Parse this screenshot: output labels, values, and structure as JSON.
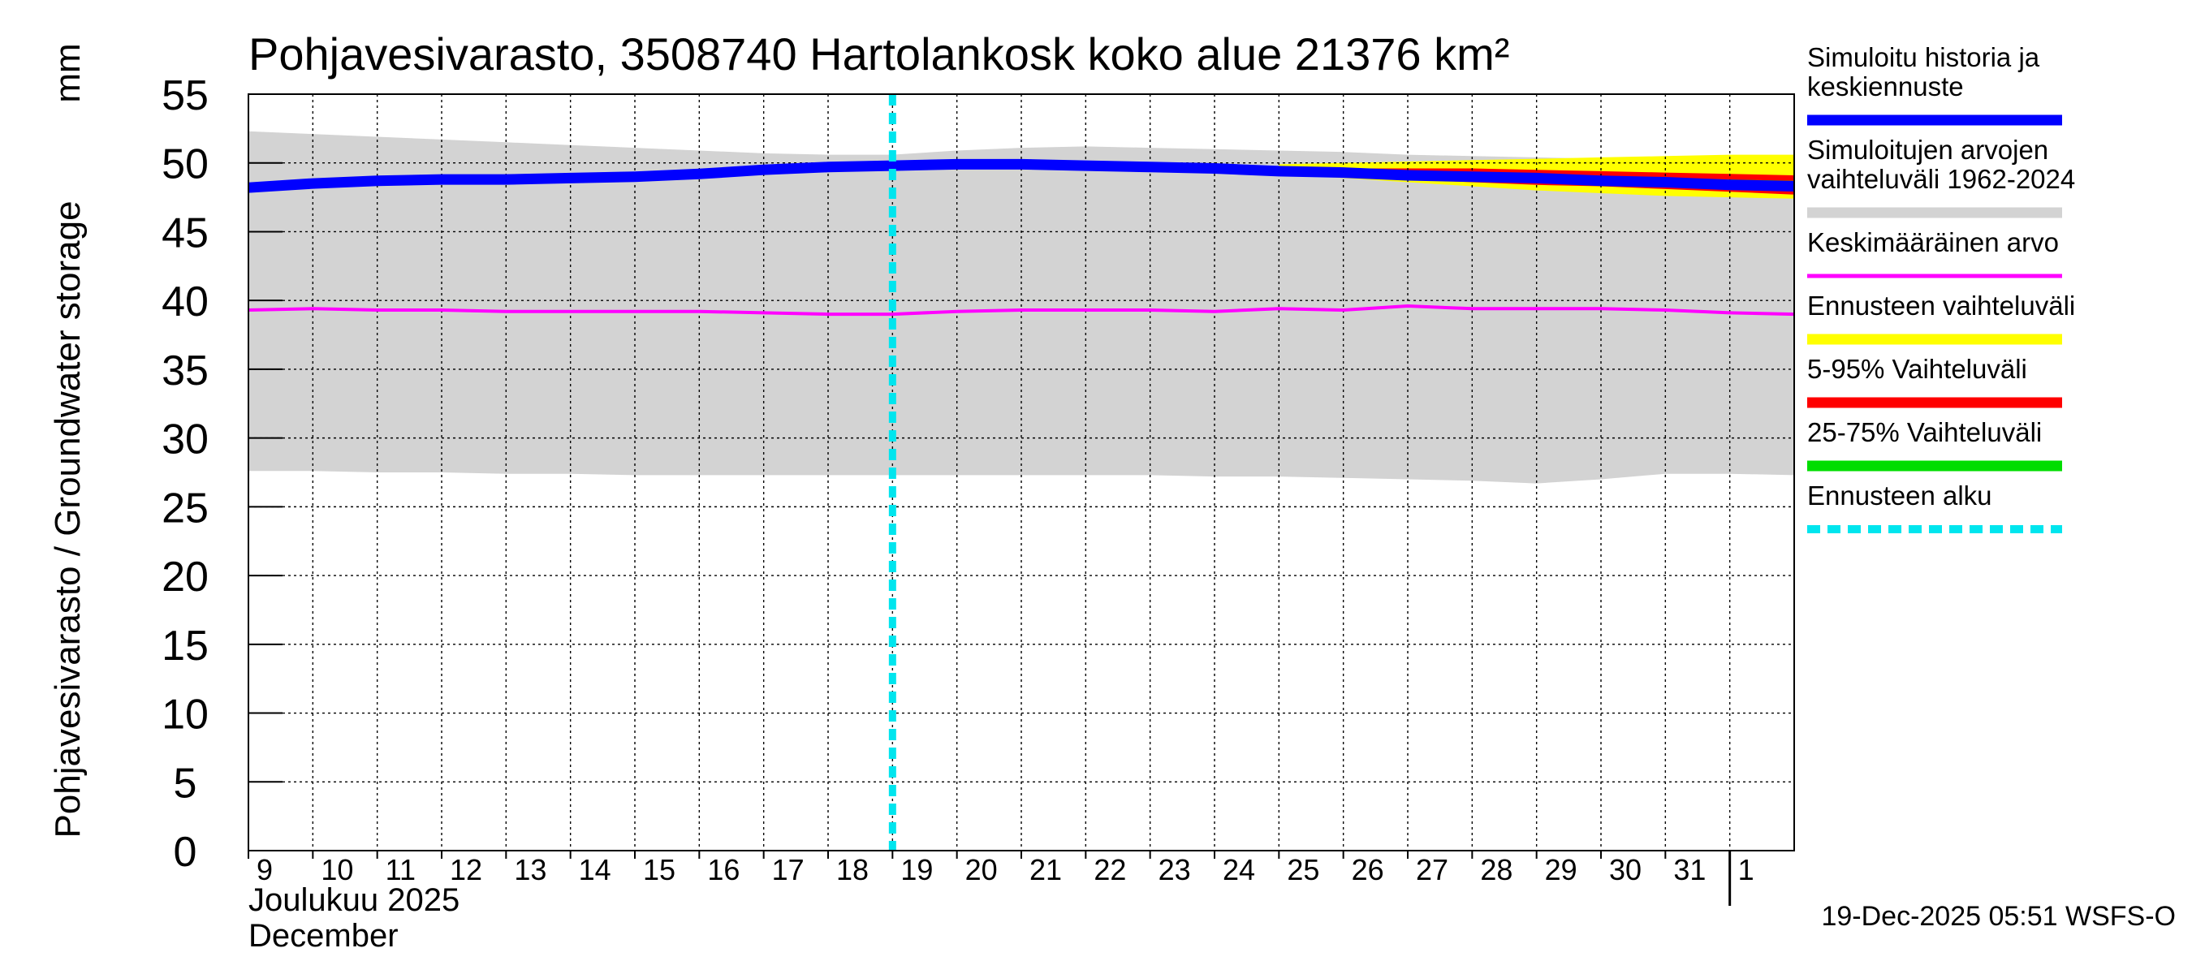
{
  "chart_data": {
    "type": "area",
    "title": "Pohjavesivarasto, 3508740 Hartolankosk koko alue 21376 km²",
    "ylabel": "Pohjavesivarasto / Groundwater storage",
    "yunit": "mm",
    "ylim": [
      0,
      55
    ],
    "yticks": [
      0,
      5,
      10,
      15,
      20,
      25,
      30,
      35,
      40,
      45,
      50,
      55
    ],
    "xlim": [
      0,
      24
    ],
    "xticks": [
      {
        "pos": 0,
        "label": "9"
      },
      {
        "pos": 1,
        "label": "10"
      },
      {
        "pos": 2,
        "label": "11"
      },
      {
        "pos": 3,
        "label": "12"
      },
      {
        "pos": 4,
        "label": "13"
      },
      {
        "pos": 5,
        "label": "14"
      },
      {
        "pos": 6,
        "label": "15"
      },
      {
        "pos": 7,
        "label": "16"
      },
      {
        "pos": 8,
        "label": "17"
      },
      {
        "pos": 9,
        "label": "18"
      },
      {
        "pos": 10,
        "label": "19"
      },
      {
        "pos": 11,
        "label": "20"
      },
      {
        "pos": 12,
        "label": "21"
      },
      {
        "pos": 13,
        "label": "22"
      },
      {
        "pos": 14,
        "label": "23"
      },
      {
        "pos": 15,
        "label": "24"
      },
      {
        "pos": 16,
        "label": "25"
      },
      {
        "pos": 17,
        "label": "26"
      },
      {
        "pos": 18,
        "label": "27"
      },
      {
        "pos": 19,
        "label": "28"
      },
      {
        "pos": 20,
        "label": "29"
      },
      {
        "pos": 21,
        "label": "30"
      },
      {
        "pos": 22,
        "label": "31"
      },
      {
        "pos": 23,
        "label": "1"
      }
    ],
    "month_label_fi": "Joulukuu  2025",
    "month_label_en": "December",
    "month_boundary": 23,
    "forecast_start": 10,
    "x": [
      0,
      1,
      2,
      3,
      4,
      5,
      6,
      7,
      8,
      9,
      10,
      11,
      12,
      13,
      14,
      15,
      16,
      17,
      18,
      19,
      20,
      21,
      22,
      23,
      24
    ],
    "series": [
      {
        "name": "Simuloitujen arvojen vaihteluväli 1962-2024",
        "role": "hist_range",
        "color": "#d3d3d3",
        "low": [
          27.6,
          27.6,
          27.5,
          27.5,
          27.4,
          27.4,
          27.3,
          27.3,
          27.3,
          27.3,
          27.3,
          27.3,
          27.3,
          27.3,
          27.3,
          27.2,
          27.2,
          27.1,
          27.0,
          26.9,
          26.7,
          27.0,
          27.4,
          27.4,
          27.3
        ],
        "high": [
          52.3,
          52.1,
          51.9,
          51.7,
          51.5,
          51.3,
          51.1,
          50.9,
          50.7,
          50.6,
          50.6,
          50.9,
          51.1,
          51.2,
          51.1,
          51.0,
          50.9,
          50.8,
          50.6,
          50.5,
          50.4,
          50.3,
          50.2,
          50.1,
          50.1
        ]
      },
      {
        "name": "Ennusteen vaihteluväli",
        "role": "forecast_range",
        "color": "#ffff00",
        "x": [
          16,
          17,
          18,
          19,
          20,
          21,
          22,
          23,
          24
        ],
        "low": [
          49.2,
          48.9,
          48.6,
          48.3,
          48.0,
          47.8,
          47.6,
          47.5,
          47.4
        ],
        "high": [
          49.9,
          50.0,
          50.1,
          50.2,
          50.3,
          50.4,
          50.5,
          50.6,
          50.6
        ]
      },
      {
        "name": "5-95% Vaihteluväli",
        "role": "p5_95",
        "color": "#ff0000",
        "x": [
          16,
          17,
          18,
          19,
          20,
          21,
          22,
          23,
          24
        ],
        "low": [
          49.3,
          49.0,
          48.8,
          48.6,
          48.4,
          48.3,
          48.1,
          47.9,
          47.7
        ],
        "high": [
          49.6,
          49.6,
          49.6,
          49.6,
          49.5,
          49.4,
          49.3,
          49.2,
          49.1
        ]
      },
      {
        "name": "25-75% Vaihteluväli",
        "role": "p25_75",
        "color": "#00dd00",
        "x": [
          16,
          17,
          18,
          19,
          20,
          21,
          22,
          23,
          24
        ],
        "low": [
          49.35,
          49.15,
          48.95,
          48.75,
          48.6,
          48.5,
          48.4,
          48.3,
          48.2
        ],
        "high": [
          49.5,
          49.4,
          49.3,
          49.2,
          49.1,
          49.0,
          48.9,
          48.8,
          48.7
        ]
      },
      {
        "name": "Keskimääräinen arvo",
        "role": "mean",
        "color": "#ff00ff",
        "values": [
          39.3,
          39.4,
          39.3,
          39.3,
          39.2,
          39.2,
          39.2,
          39.2,
          39.1,
          39.0,
          39.0,
          39.2,
          39.3,
          39.3,
          39.3,
          39.2,
          39.4,
          39.3,
          39.6,
          39.4,
          39.4,
          39.4,
          39.3,
          39.1,
          39.0
        ]
      },
      {
        "name": "Simuloitu historia ja keskiennuste",
        "role": "simulated",
        "color": "#0000ff",
        "values": [
          48.2,
          48.5,
          48.7,
          48.8,
          48.8,
          48.9,
          49.0,
          49.2,
          49.5,
          49.7,
          49.8,
          49.9,
          49.9,
          49.8,
          49.7,
          49.6,
          49.4,
          49.3,
          49.1,
          49.0,
          48.9,
          48.7,
          48.6,
          48.4,
          48.3
        ]
      }
    ],
    "legend": {
      "position": "right",
      "entries": [
        {
          "lines": [
            "Simuloitu historia ja",
            "keskiennuste"
          ],
          "color": "#0000ff",
          "style": "solid"
        },
        {
          "lines": [
            "Simuloitujen arvojen",
            "vaihteluväli 1962-2024"
          ],
          "color": "#d3d3d3",
          "style": "solid"
        },
        {
          "lines": [
            "Keskimääräinen arvo"
          ],
          "color": "#ff00ff",
          "style": "solid-thin"
        },
        {
          "lines": [
            "Ennusteen vaihteluväli"
          ],
          "color": "#ffff00",
          "style": "solid"
        },
        {
          "lines": [
            "5-95% Vaihteluväli"
          ],
          "color": "#ff0000",
          "style": "solid"
        },
        {
          "lines": [
            "25-75% Vaihteluväli"
          ],
          "color": "#00dd00",
          "style": "solid"
        },
        {
          "lines": [
            "Ennusteen alku"
          ],
          "color": "#00e5ee",
          "style": "dashed"
        }
      ]
    },
    "grid": true,
    "footer": "19-Dec-2025 05:51 WSFS-O"
  }
}
